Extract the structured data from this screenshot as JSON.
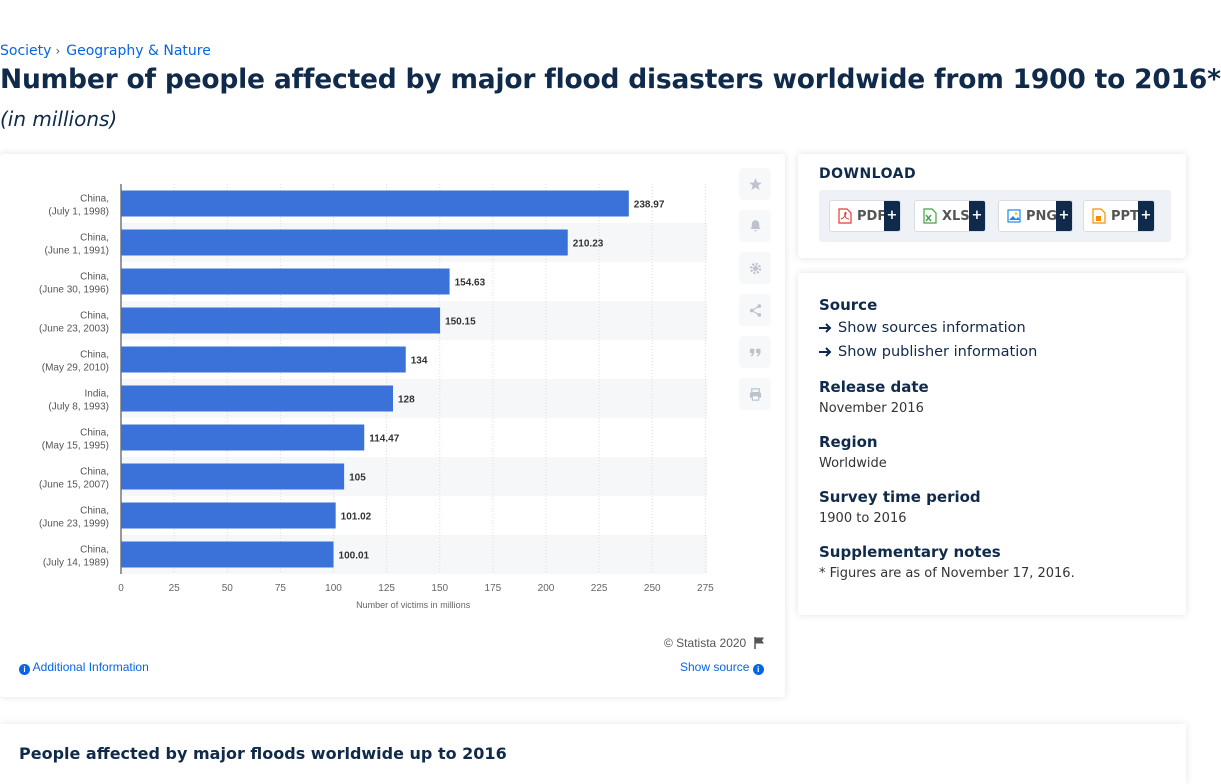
{
  "breadcrumb": {
    "items": [
      "Society",
      "Geography & Nature"
    ]
  },
  "page": {
    "title": "Number of people affected by major flood disasters worldwide from 1900 to 2016*",
    "subtitle": "(in millions)"
  },
  "chart_data": {
    "type": "bar",
    "orientation": "horizontal",
    "categories": [
      [
        "China,",
        "(July 1, 1998)"
      ],
      [
        "China,",
        "(June 1, 1991)"
      ],
      [
        "China,",
        "(June 30, 1996)"
      ],
      [
        "China,",
        "(June 23, 2003)"
      ],
      [
        "China,",
        "(May 29, 2010)"
      ],
      [
        "India,",
        "(July 8, 1993)"
      ],
      [
        "China,",
        "(May 15, 1995)"
      ],
      [
        "China,",
        "(June 15, 2007)"
      ],
      [
        "China,",
        "(June 23, 1999)"
      ],
      [
        "China,",
        "(July 14, 1989)"
      ]
    ],
    "values": [
      238.97,
      210.23,
      154.63,
      150.15,
      134,
      128,
      114.47,
      105,
      101.02,
      100.01
    ],
    "value_labels": [
      "238.97",
      "210.23",
      "154.63",
      "150.15",
      "134",
      "128",
      "114.47",
      "105",
      "101.02",
      "100.01"
    ],
    "xlabel": "Number of victims in millions",
    "ylabel": "",
    "xlim": [
      0,
      275
    ],
    "ticks": [
      0,
      25,
      50,
      75,
      100,
      125,
      150,
      175,
      200,
      225,
      250,
      275
    ],
    "grid": true,
    "bar_color": "#3b72d9"
  },
  "chart_footer": {
    "copyright": "© Statista 2020",
    "additional_info": "Additional Information",
    "show_source": "Show source"
  },
  "tools": [
    "star-icon",
    "bell-icon",
    "gear-icon",
    "share-icon",
    "quote-icon",
    "print-icon"
  ],
  "download": {
    "title": "DOWNLOAD",
    "buttons": [
      {
        "label": "PDF",
        "icon": "pdf-file-icon",
        "color": "#e53935"
      },
      {
        "label": "XLS",
        "icon": "xls-file-icon",
        "color": "#43a047"
      },
      {
        "label": "PNG",
        "icon": "png-file-icon",
        "color": "#1e88e5"
      },
      {
        "label": "PPT",
        "icon": "ppt-file-icon",
        "color": "#fb8c00"
      }
    ],
    "plus": "+"
  },
  "meta": {
    "source_label": "Source",
    "show_sources": "Show sources information",
    "show_publisher": "Show publisher information",
    "release_label": "Release date",
    "release_value": "November 2016",
    "region_label": "Region",
    "region_value": "Worldwide",
    "survey_label": "Survey time period",
    "survey_value": "1900 to 2016",
    "notes_label": "Supplementary notes",
    "notes_value": "* Figures are as of November 17, 2016."
  },
  "bottom": {
    "title": "People affected by major floods worldwide up to 2016"
  },
  "colors": {
    "accent": "#0666e5",
    "navy": "#0f2a4a",
    "bar": "#3b72d9"
  }
}
